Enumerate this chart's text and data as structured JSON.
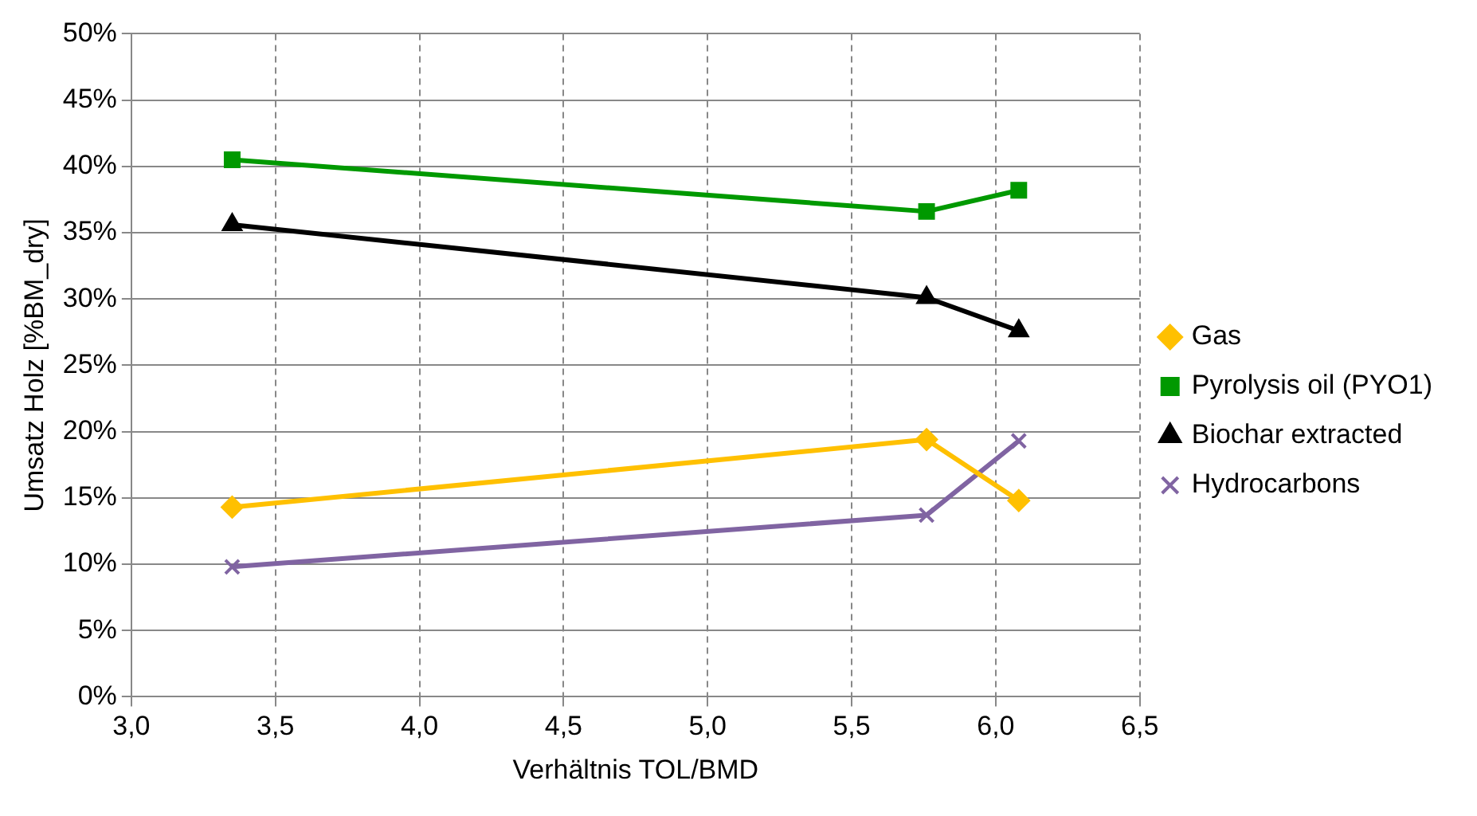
{
  "chart_data": {
    "type": "line",
    "xlabel": "Verhältnis TOL/BMD",
    "ylabel": "Umsatz Holz [%BM_dry]",
    "xlim": [
      3.0,
      6.5
    ],
    "xticks": [
      {
        "value": 3.0,
        "label": "3,0"
      },
      {
        "value": 3.5,
        "label": "3,5"
      },
      {
        "value": 4.0,
        "label": "4,0"
      },
      {
        "value": 4.5,
        "label": "4,5"
      },
      {
        "value": 5.0,
        "label": "5,0"
      },
      {
        "value": 5.5,
        "label": "5,5"
      },
      {
        "value": 6.0,
        "label": "6,0"
      },
      {
        "value": 6.5,
        "label": "6,5"
      }
    ],
    "ylim": [
      0,
      50
    ],
    "yticks": [
      {
        "value": 0,
        "label": "0%"
      },
      {
        "value": 5,
        "label": "5%"
      },
      {
        "value": 10,
        "label": "10%"
      },
      {
        "value": 15,
        "label": "15%"
      },
      {
        "value": 20,
        "label": "20%"
      },
      {
        "value": 25,
        "label": "25%"
      },
      {
        "value": 30,
        "label": "30%"
      },
      {
        "value": 35,
        "label": "35%"
      },
      {
        "value": 40,
        "label": "40%"
      },
      {
        "value": 45,
        "label": "45%"
      },
      {
        "value": 50,
        "label": "50%"
      }
    ],
    "x": [
      3.35,
      5.76,
      6.08
    ],
    "series": [
      {
        "name": "Gas",
        "color": "#ffc000",
        "marker": "diamond",
        "values": [
          14.3,
          19.4,
          14.8
        ]
      },
      {
        "name": "Pyrolysis oil (PYO1)",
        "color": "#009900",
        "marker": "square",
        "values": [
          40.5,
          36.6,
          38.2
        ]
      },
      {
        "name": "Biochar extracted",
        "color": "#000000",
        "marker": "triangle",
        "values": [
          35.6,
          30.1,
          27.6
        ]
      },
      {
        "name": "Hydrocarbons",
        "color": "#8064a2",
        "marker": "cross",
        "values": [
          9.8,
          13.7,
          19.3
        ]
      }
    ],
    "grid": true,
    "line_style": "solid",
    "legend": "right"
  }
}
